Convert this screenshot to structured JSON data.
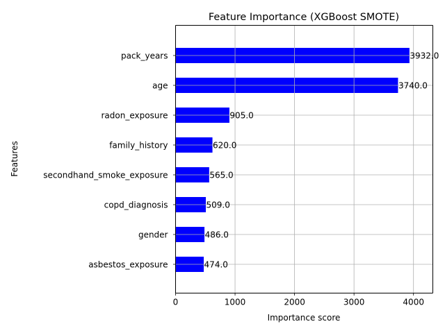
{
  "chart_data": {
    "type": "bar",
    "orientation": "horizontal",
    "title": "Feature Importance (XGBoost SMOTE)",
    "xlabel": "Importance score",
    "ylabel": "Features",
    "categories": [
      "pack_years",
      "age",
      "radon_exposure",
      "family_history",
      "secondhand_smoke_exposure",
      "copd_diagnosis",
      "gender",
      "asbestos_exposure"
    ],
    "values": [
      3932.0,
      3740.0,
      905.0,
      620.0,
      565.0,
      509.0,
      486.0,
      474.0
    ],
    "value_labels": [
      "3932.0",
      "3740.0",
      "905.0",
      "620.0",
      "565.0",
      "509.0",
      "486.0",
      "474.0"
    ],
    "xticks": [
      0,
      1000,
      2000,
      3000,
      4000
    ],
    "xtick_labels": [
      "0",
      "1000",
      "2000",
      "3000",
      "4000"
    ],
    "xlim": [
      0,
      4325
    ],
    "grid": true,
    "bar_color": "#0000ff",
    "grid_color": "#b0b0b0",
    "legend": "none"
  }
}
